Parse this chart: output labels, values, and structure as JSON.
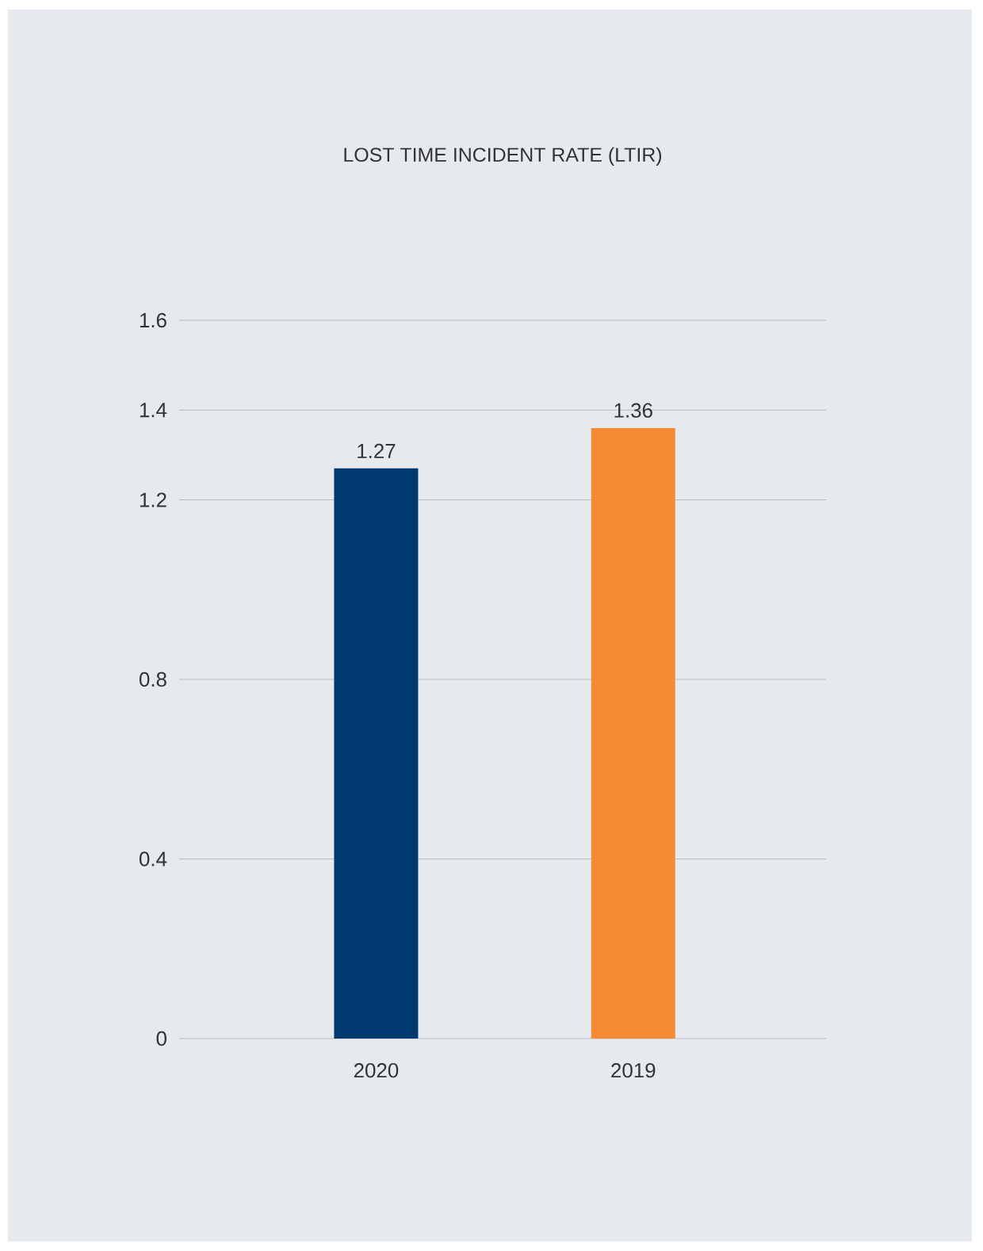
{
  "chart_data": {
    "type": "bar",
    "title": "LOST TIME INCIDENT RATE (LTIR)",
    "categories": [
      "2020",
      "2019"
    ],
    "values": [
      1.27,
      1.36
    ],
    "colors": [
      "#003a70",
      "#f58a33"
    ],
    "ylim": [
      0,
      1.6
    ],
    "yticks": [
      0,
      0.4,
      0.8,
      1.2,
      1.4,
      1.6
    ],
    "grid": "y",
    "data_labels": true
  }
}
